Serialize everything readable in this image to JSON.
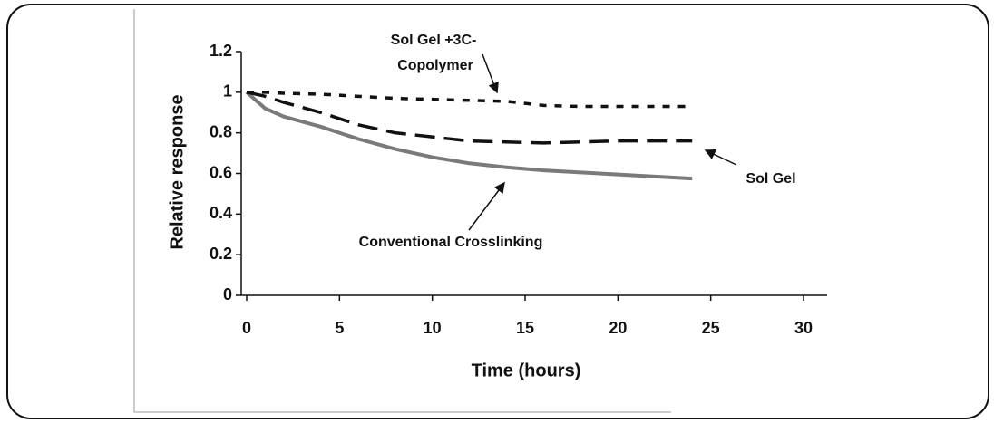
{
  "chart_data": {
    "type": "line",
    "xlabel": "Time (hours)",
    "ylabel": "Relative response",
    "x": [
      0,
      1,
      2,
      4,
      6,
      8,
      10,
      12,
      14,
      16,
      18,
      20,
      22,
      24
    ],
    "series": [
      {
        "name": "Conventional Crosslinking",
        "color": "#7a7a7a",
        "dash": "solid",
        "values": [
          1.0,
          0.92,
          0.88,
          0.83,
          0.77,
          0.72,
          0.68,
          0.65,
          0.63,
          0.615,
          0.605,
          0.595,
          0.585,
          0.575
        ]
      },
      {
        "name": "Sol Gel",
        "color": "#111111",
        "dash": "long",
        "values": [
          1.0,
          0.98,
          0.95,
          0.9,
          0.84,
          0.8,
          0.78,
          0.76,
          0.755,
          0.75,
          0.755,
          0.76,
          0.76,
          0.76
        ]
      },
      {
        "name": "Sol Gel +3C-Copolymer",
        "color": "#111111",
        "dash": "short",
        "values": [
          1.0,
          1.0,
          0.995,
          0.99,
          0.98,
          0.97,
          0.965,
          0.96,
          0.955,
          0.935,
          0.93,
          0.93,
          0.93,
          0.93
        ]
      }
    ],
    "annotations": [
      "Sol Gel +3C-",
      "Copolymer",
      "Sol Gel",
      "Conventional Crosslinking"
    ],
    "xlim": [
      0,
      30
    ],
    "xticks": [
      0,
      5,
      10,
      15,
      20,
      25,
      30
    ],
    "ylim": [
      0,
      1.2
    ],
    "yticks": [
      0,
      0.2,
      0.4,
      0.6,
      0.8,
      1,
      1.2
    ]
  }
}
